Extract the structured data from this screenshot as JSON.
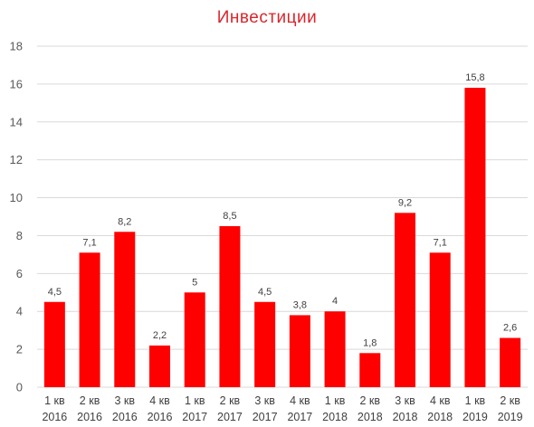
{
  "chart_data": {
    "type": "bar",
    "title": "Инвестиции",
    "categories": [
      [
        "1 кв",
        "2016"
      ],
      [
        "2 кв",
        "2016"
      ],
      [
        "3 кв",
        "2016"
      ],
      [
        "4 кв",
        "2016"
      ],
      [
        "1 кв",
        "2017"
      ],
      [
        "2 кв",
        "2017"
      ],
      [
        "3 кв",
        "2017"
      ],
      [
        "4 кв",
        "2017"
      ],
      [
        "1 кв",
        "2018"
      ],
      [
        "2 кв",
        "2018"
      ],
      [
        "3 кв",
        "2018"
      ],
      [
        "4 кв",
        "2018"
      ],
      [
        "1 кв",
        "2019"
      ],
      [
        "2 кв",
        "2019"
      ]
    ],
    "values": [
      4.5,
      7.1,
      8.2,
      2.2,
      5,
      8.5,
      4.5,
      3.8,
      4,
      1.8,
      9.2,
      7.1,
      15.8,
      2.6
    ],
    "data_labels": [
      "4,5",
      "7,1",
      "8,2",
      "2,2",
      "5",
      "8,5",
      "4,5",
      "3,8",
      "4",
      "1,8",
      "9,2",
      "7,1",
      "15,8",
      "2,6"
    ],
    "yticks": [
      "0",
      "2",
      "4",
      "6",
      "8",
      "10",
      "12",
      "14",
      "16",
      "18"
    ],
    "ylim": [
      0,
      18
    ],
    "xlabel": "",
    "ylabel": "",
    "grid": true,
    "bar_color": "#ff0000",
    "title_color": "#d9262b"
  }
}
